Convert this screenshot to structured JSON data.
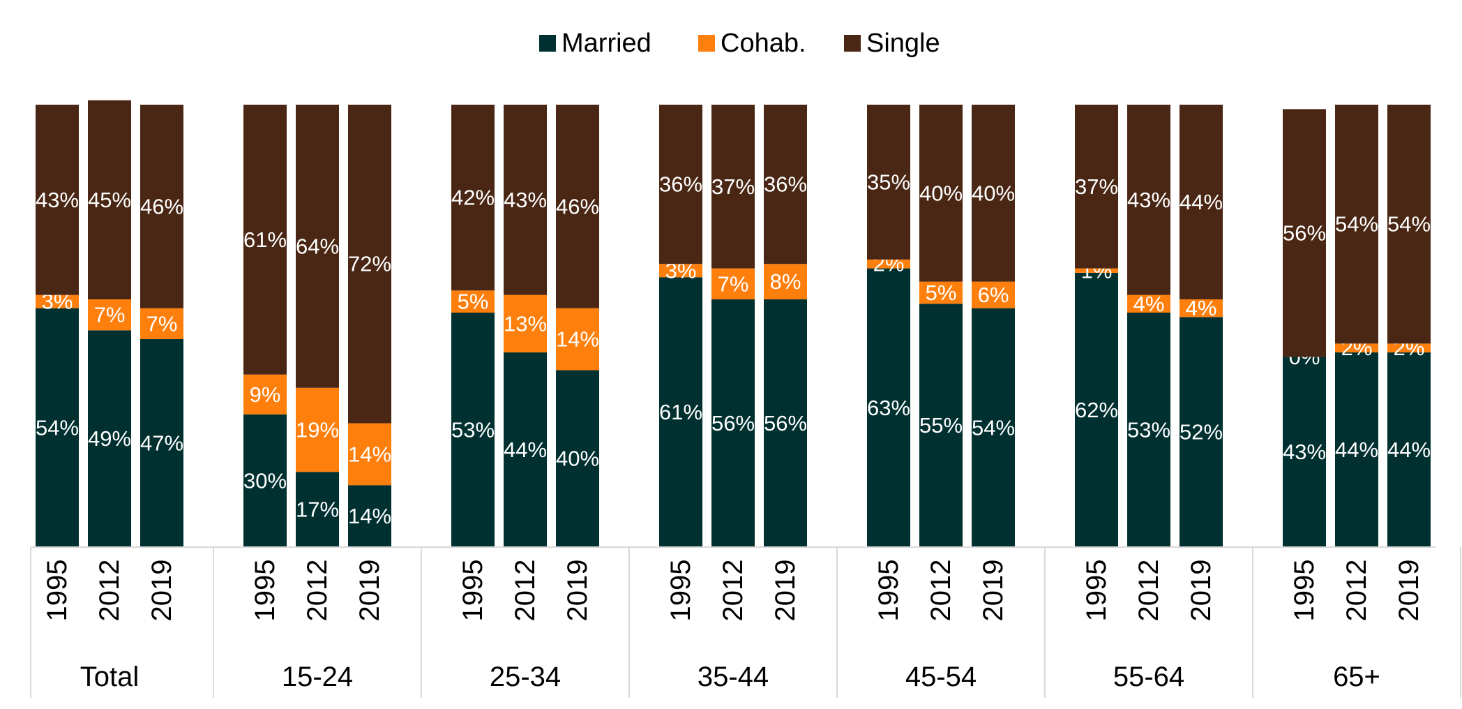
{
  "chart_data": {
    "type": "stacked_bar",
    "groups": [
      "Total",
      "15-24",
      "25-34",
      "35-44",
      "45-54",
      "55-64",
      "65+"
    ],
    "categories": [
      "1995",
      "2012",
      "2019",
      "1995",
      "2012",
      "2019",
      "1995",
      "2012",
      "2019",
      "1995",
      "2012",
      "2019",
      "1995",
      "2012",
      "2019",
      "1995",
      "2012",
      "2019",
      "1995",
      "2012",
      "2019"
    ],
    "ylim": [
      0,
      100
    ],
    "legend": "top",
    "series": [
      {
        "name": "Married",
        "color": "#00302f",
        "values": [
          54,
          49,
          47,
          30,
          17,
          14,
          53,
          44,
          40,
          61,
          56,
          56,
          63,
          55,
          54,
          62,
          53,
          52,
          43,
          44,
          44
        ],
        "value_labels": [
          "54%",
          "49%",
          "47%",
          "30%",
          "17%",
          "14%",
          "53%",
          "44%",
          "40%",
          "61%",
          "56%",
          "56%",
          "63%",
          "55%",
          "54%",
          "62%",
          "53%",
          "52%",
          "43%",
          "44%",
          "44%"
        ]
      },
      {
        "name": "Cohab.",
        "color": "#fe7f0c",
        "values": [
          3,
          7,
          7,
          9,
          19,
          14,
          5,
          13,
          14,
          3,
          7,
          8,
          2,
          5,
          6,
          1,
          4,
          4,
          0,
          2,
          2
        ],
        "value_labels": [
          "3%",
          "7%",
          "7%",
          "9%",
          "19%",
          "14%",
          "5%",
          "13%",
          "14%",
          "3%",
          "7%",
          "8%",
          "2%",
          "5%",
          "6%",
          "1%",
          "4%",
          "4%",
          "0%",
          "2%",
          "2%"
        ]
      },
      {
        "name": "Single",
        "color": "#4a2714",
        "values": [
          43,
          45,
          46,
          61,
          64,
          72,
          42,
          43,
          46,
          36,
          37,
          36,
          35,
          40,
          40,
          37,
          43,
          44,
          56,
          54,
          54
        ],
        "value_labels": [
          "43%",
          "45%",
          "46%",
          "61%",
          "64%",
          "72%",
          "42%",
          "43%",
          "46%",
          "36%",
          "37%",
          "36%",
          "35%",
          "40%",
          "40%",
          "37%",
          "43%",
          "44%",
          "56%",
          "54%",
          "54%"
        ]
      }
    ]
  }
}
